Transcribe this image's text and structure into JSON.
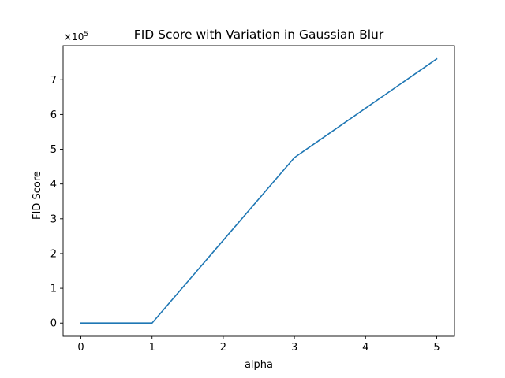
{
  "chart_data": {
    "type": "line",
    "title": "FID Score with Variation in Gaussian Blur",
    "xlabel": "alpha",
    "ylabel": "FID Score",
    "y_offset_text": {
      "base": "×10",
      "exponent": "5"
    },
    "x": [
      0,
      1,
      2,
      3,
      4,
      5
    ],
    "series": [
      {
        "values": [
          0,
          0,
          2.38,
          4.76,
          6.18,
          7.6
        ],
        "color": "#1f77b4"
      }
    ],
    "xlim": [
      -0.25,
      5.25
    ],
    "ylim": [
      -0.38,
      7.98
    ],
    "xticks": [
      0,
      1,
      2,
      3,
      4,
      5
    ],
    "yticks": [
      0,
      1,
      2,
      3,
      4,
      5,
      6,
      7
    ],
    "grid": false,
    "legend": "none"
  }
}
